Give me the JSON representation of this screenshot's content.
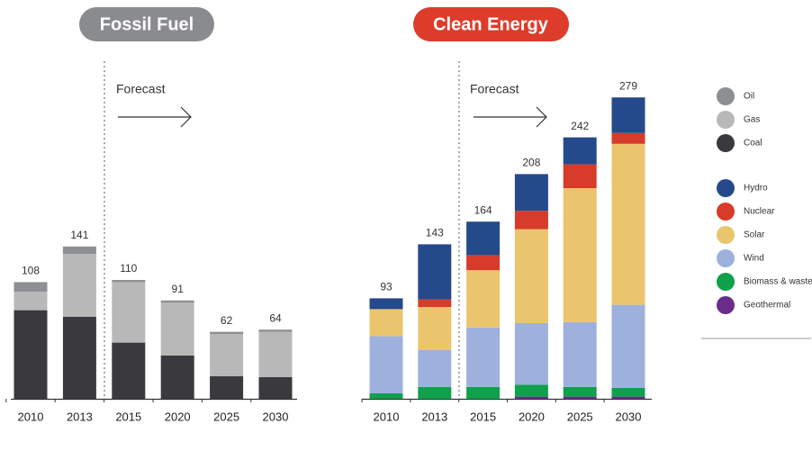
{
  "chart_data": [
    {
      "type": "bar",
      "stacked": true,
      "title": "Fossil Fuel",
      "annotation": "Forecast",
      "categories": [
        "2010",
        "2013",
        "2015",
        "2020",
        "2025",
        "2030"
      ],
      "ylim": [
        0,
        290
      ],
      "totals": [
        108,
        141,
        110,
        91,
        62,
        64
      ],
      "series": [
        {
          "name": "Coal",
          "color": "#3a3a3e",
          "values": [
            82,
            76,
            52,
            40,
            21,
            20
          ]
        },
        {
          "name": "Gas",
          "color": "#b8b8b8",
          "values": [
            17,
            58,
            56,
            49,
            39,
            42
          ]
        },
        {
          "name": "Oil",
          "color": "#8e8f93",
          "values": [
            9,
            7,
            2,
            2,
            2,
            2
          ]
        }
      ]
    },
    {
      "type": "bar",
      "stacked": true,
      "title": "Clean Energy",
      "annotation": "Forecast",
      "categories": [
        "2010",
        "2013",
        "2015",
        "2020",
        "2025",
        "2030"
      ],
      "ylim": [
        0,
        290
      ],
      "totals": [
        93,
        143,
        164,
        208,
        242,
        279
      ],
      "series": [
        {
          "name": "Geothermal",
          "color": "#6a2d8c",
          "values": [
            0,
            0,
            0,
            2,
            2,
            2
          ]
        },
        {
          "name": "Biomass & waste",
          "color": "#0fa14b",
          "values": [
            5,
            11,
            11,
            11,
            9,
            8
          ]
        },
        {
          "name": "Wind",
          "color": "#9db1dc",
          "values": [
            53,
            34,
            55,
            57,
            60,
            77
          ]
        },
        {
          "name": "Solar",
          "color": "#ebc46e",
          "values": [
            25,
            40,
            53,
            87,
            124,
            149
          ]
        },
        {
          "name": "Nuclear",
          "color": "#d73b2a",
          "values": [
            0,
            7,
            14,
            17,
            22,
            10
          ]
        },
        {
          "name": "Hydro",
          "color": "#254a8c",
          "values": [
            10,
            51,
            31,
            34,
            25,
            33
          ]
        }
      ]
    }
  ]
}
